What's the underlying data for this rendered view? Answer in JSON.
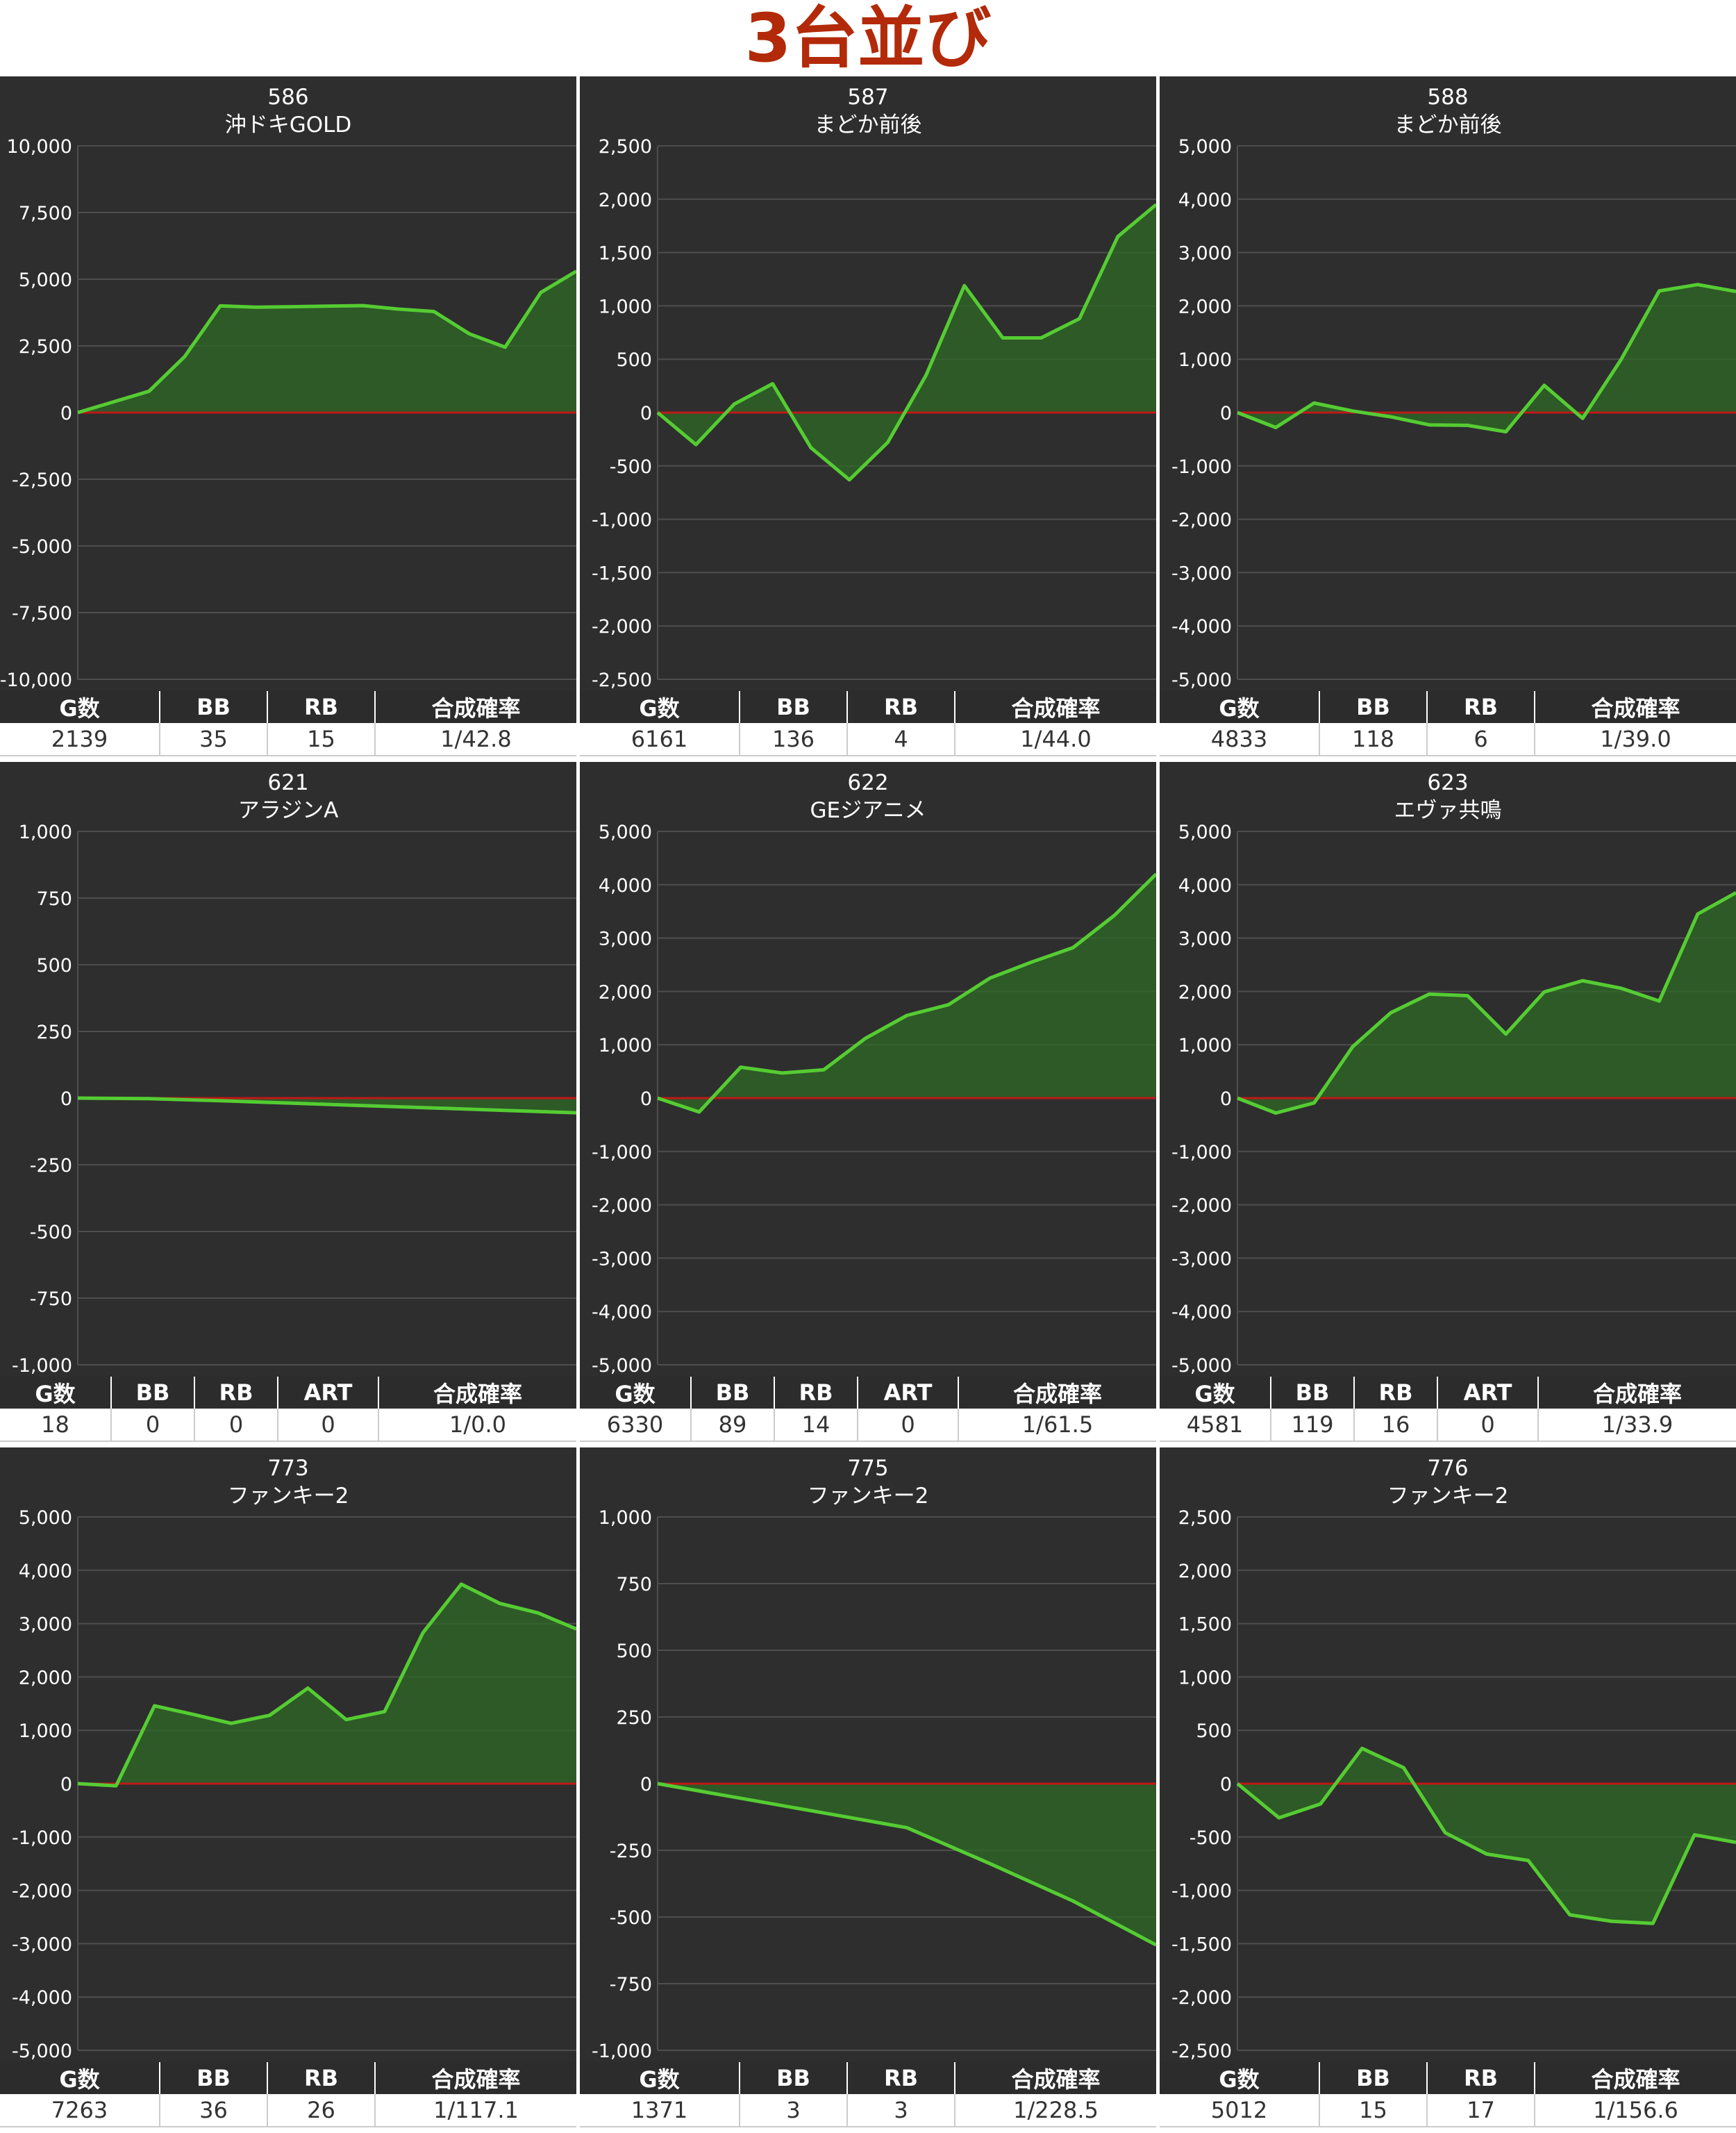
{
  "page": {
    "title": "3台並び"
  },
  "colors": {
    "panel_background": "#2e2e2e",
    "grid": "#4e4e4e",
    "zero_line": "#c01818",
    "series_line": "#55cc33",
    "area_fill": "#2d6a24",
    "header_background": "#2c2c2c",
    "title_color": "#b22a0a"
  },
  "chart_data": [
    {
      "type": "area",
      "title": "586",
      "subtitle": "沖ドキGOLD",
      "ylim": [
        -10000,
        10000
      ],
      "y_ticks": [
        "10,000",
        "7,500",
        "5,000",
        "2,500",
        "0",
        "-2,500",
        "-5,000",
        "-7,500",
        "-10,000"
      ],
      "values": [
        0,
        400,
        800,
        2100,
        4000,
        3950,
        3970,
        3990,
        4010,
        3880,
        3790,
        2950,
        2450,
        4500,
        5300
      ],
      "grid": true,
      "legend": "none",
      "stats": {
        "headers": [
          "G数",
          "BB",
          "RB",
          "合成確率"
        ],
        "values": [
          "2139",
          "35",
          "15",
          "1/42.8"
        ]
      }
    },
    {
      "type": "area",
      "title": "587",
      "subtitle": "まどか前後",
      "ylim": [
        -2500,
        2500
      ],
      "y_ticks": [
        "2,500",
        "2,000",
        "1,500",
        "1,000",
        "500",
        "0",
        "-500",
        "-1,000",
        "-1,500",
        "-2,000",
        "-2,500"
      ],
      "values": [
        0,
        -300,
        80,
        270,
        -330,
        -630,
        -280,
        350,
        1190,
        700,
        700,
        880,
        1650,
        1950
      ],
      "grid": true,
      "legend": "none",
      "stats": {
        "headers": [
          "G数",
          "BB",
          "RB",
          "合成確率"
        ],
        "values": [
          "6161",
          "136",
          "4",
          "1/44.0"
        ]
      }
    },
    {
      "type": "area",
      "title": "588",
      "subtitle": "まどか前後",
      "ylim": [
        -5000,
        5000
      ],
      "y_ticks": [
        "5,000",
        "4,000",
        "3,000",
        "2,000",
        "1,000",
        "0",
        "-1,000",
        "-2,000",
        "-3,000",
        "-4,000",
        "-5,000"
      ],
      "values": [
        0,
        -280,
        180,
        30,
        -80,
        -230,
        -240,
        -360,
        510,
        -110,
        990,
        2280,
        2400,
        2270
      ],
      "grid": true,
      "legend": "none",
      "stats": {
        "headers": [
          "G数",
          "BB",
          "RB",
          "合成確率"
        ],
        "values": [
          "4833",
          "118",
          "6",
          "1/39.0"
        ]
      }
    },
    {
      "type": "area",
      "title": "621",
      "subtitle": "アラジンA",
      "ylim": [
        -1000,
        1000
      ],
      "y_ticks": [
        "1,000",
        "750",
        "500",
        "250",
        "0",
        "-250",
        "-500",
        "-750",
        "-1,000"
      ],
      "values": [
        0,
        -2,
        -10,
        -19,
        -28,
        -37,
        -46,
        -55
      ],
      "grid": true,
      "legend": "none",
      "stats": {
        "headers": [
          "G数",
          "BB",
          "RB",
          "ART",
          "合成確率"
        ],
        "values": [
          "18",
          "0",
          "0",
          "0",
          "1/0.0"
        ]
      }
    },
    {
      "type": "area",
      "title": "622",
      "subtitle": "GEジアニメ",
      "ylim": [
        -5000,
        5000
      ],
      "y_ticks": [
        "5,000",
        "4,000",
        "3,000",
        "2,000",
        "1,000",
        "0",
        "-1,000",
        "-2,000",
        "-3,000",
        "-4,000",
        "-5,000"
      ],
      "values": [
        0,
        -260,
        580,
        470,
        530,
        1120,
        1550,
        1750,
        2250,
        2550,
        2820,
        3430,
        4200
      ],
      "grid": true,
      "legend": "none",
      "stats": {
        "headers": [
          "G数",
          "BB",
          "RB",
          "ART",
          "合成確率"
        ],
        "values": [
          "6330",
          "89",
          "14",
          "0",
          "1/61.5"
        ]
      }
    },
    {
      "type": "area",
      "title": "623",
      "subtitle": "エヴァ共鳴",
      "ylim": [
        -5000,
        5000
      ],
      "y_ticks": [
        "5,000",
        "4,000",
        "3,000",
        "2,000",
        "1,000",
        "0",
        "-1,000",
        "-2,000",
        "-3,000",
        "-4,000",
        "-5,000"
      ],
      "values": [
        0,
        -280,
        -90,
        960,
        1600,
        1950,
        1920,
        1200,
        1990,
        2200,
        2060,
        1820,
        3450,
        3850
      ],
      "grid": true,
      "legend": "none",
      "stats": {
        "headers": [
          "G数",
          "BB",
          "RB",
          "ART",
          "合成確率"
        ],
        "values": [
          "4581",
          "119",
          "16",
          "0",
          "1/33.9"
        ]
      }
    },
    {
      "type": "area",
      "title": "773",
      "subtitle": "ファンキー2",
      "ylim": [
        -5000,
        5000
      ],
      "y_ticks": [
        "5,000",
        "4,000",
        "3,000",
        "2,000",
        "1,000",
        "0",
        "-1,000",
        "-2,000",
        "-3,000",
        "-4,000",
        "-5,000"
      ],
      "values": [
        0,
        -40,
        1460,
        1300,
        1130,
        1280,
        1790,
        1200,
        1350,
        2830,
        3740,
        3380,
        3200,
        2900
      ],
      "grid": true,
      "legend": "none",
      "stats": {
        "headers": [
          "G数",
          "BB",
          "RB",
          "合成確率"
        ],
        "values": [
          "7263",
          "36",
          "26",
          "1/117.1"
        ]
      }
    },
    {
      "type": "area",
      "title": "775",
      "subtitle": "ファンキー2",
      "ylim": [
        -1000,
        1000
      ],
      "y_ticks": [
        "1,000",
        "750",
        "500",
        "250",
        "0",
        "-250",
        "-500",
        "-750",
        "-1,000"
      ],
      "values": [
        0,
        -55,
        -110,
        -165,
        -300,
        -440,
        -605
      ],
      "grid": true,
      "legend": "none",
      "stats": {
        "headers": [
          "G数",
          "BB",
          "RB",
          "合成確率"
        ],
        "values": [
          "1371",
          "3",
          "3",
          "1/228.5"
        ]
      }
    },
    {
      "type": "area",
      "title": "776",
      "subtitle": "ファンキー2",
      "ylim": [
        -2500,
        2500
      ],
      "y_ticks": [
        "2,500",
        "2,000",
        "1,500",
        "1,000",
        "500",
        "0",
        "-500",
        "-1,000",
        "-1,500",
        "-2,000",
        "-2,500"
      ],
      "values": [
        0,
        -320,
        -190,
        330,
        150,
        -460,
        -660,
        -720,
        -1230,
        -1290,
        -1310,
        -480,
        -550
      ],
      "grid": true,
      "legend": "none",
      "stats": {
        "headers": [
          "G数",
          "BB",
          "RB",
          "合成確率"
        ],
        "values": [
          "5012",
          "15",
          "17",
          "1/156.6"
        ]
      }
    }
  ]
}
